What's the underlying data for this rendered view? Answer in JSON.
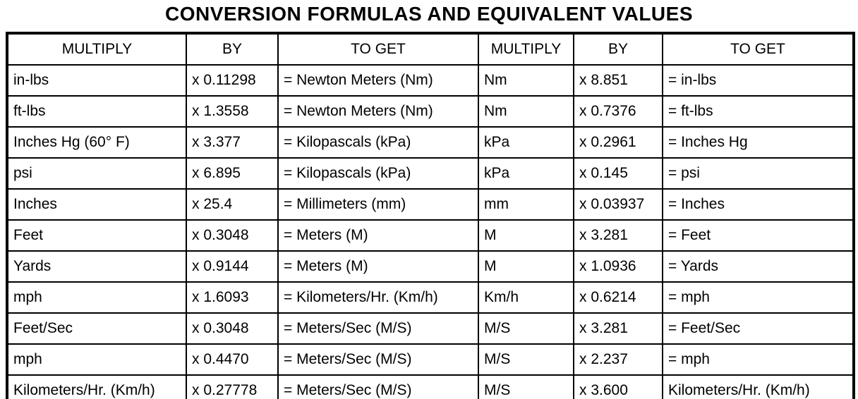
{
  "title": "CONVERSION FORMULAS AND EQUIVALENT VALUES",
  "table": {
    "headers": [
      "MULTIPLY",
      "BY",
      "TO GET",
      "MULTIPLY",
      "BY",
      "TO GET"
    ],
    "rows": [
      [
        "in-lbs",
        "x 0.11298",
        "= Newton Meters (Nm)",
        "Nm",
        "x 8.851",
        "= in-lbs"
      ],
      [
        "ft-lbs",
        "x 1.3558",
        "= Newton Meters (Nm)",
        "Nm",
        "x 0.7376",
        "= ft-lbs"
      ],
      [
        "Inches Hg (60° F)",
        "x 3.377",
        "= Kilopascals (kPa)",
        "kPa",
        "x 0.2961",
        "= Inches Hg"
      ],
      [
        "psi",
        "x 6.895",
        "= Kilopascals (kPa)",
        "kPa",
        "x 0.145",
        "= psi"
      ],
      [
        "Inches",
        "x 25.4",
        "= Millimeters (mm)",
        "mm",
        "x 0.03937",
        "= Inches"
      ],
      [
        "Feet",
        "x 0.3048",
        "= Meters (M)",
        "M",
        "x 3.281",
        "= Feet"
      ],
      [
        "Yards",
        "x 0.9144",
        "= Meters (M)",
        "M",
        "x 1.0936",
        "= Yards"
      ],
      [
        "mph",
        "x 1.6093",
        "= Kilometers/Hr. (Km/h)",
        "Km/h",
        "x 0.6214",
        "= mph"
      ],
      [
        "Feet/Sec",
        "x 0.3048",
        "= Meters/Sec (M/S)",
        "M/S",
        "x 3.281",
        "= Feet/Sec"
      ],
      [
        "mph",
        "x 0.4470",
        "= Meters/Sec (M/S)",
        "M/S",
        "x 2.237",
        "= mph"
      ],
      [
        "Kilometers/Hr. (Km/h)",
        "x 0.27778",
        "= Meters/Sec (M/S)",
        "M/S",
        "x 3.600",
        "Kilometers/Hr. (Km/h)"
      ]
    ]
  }
}
